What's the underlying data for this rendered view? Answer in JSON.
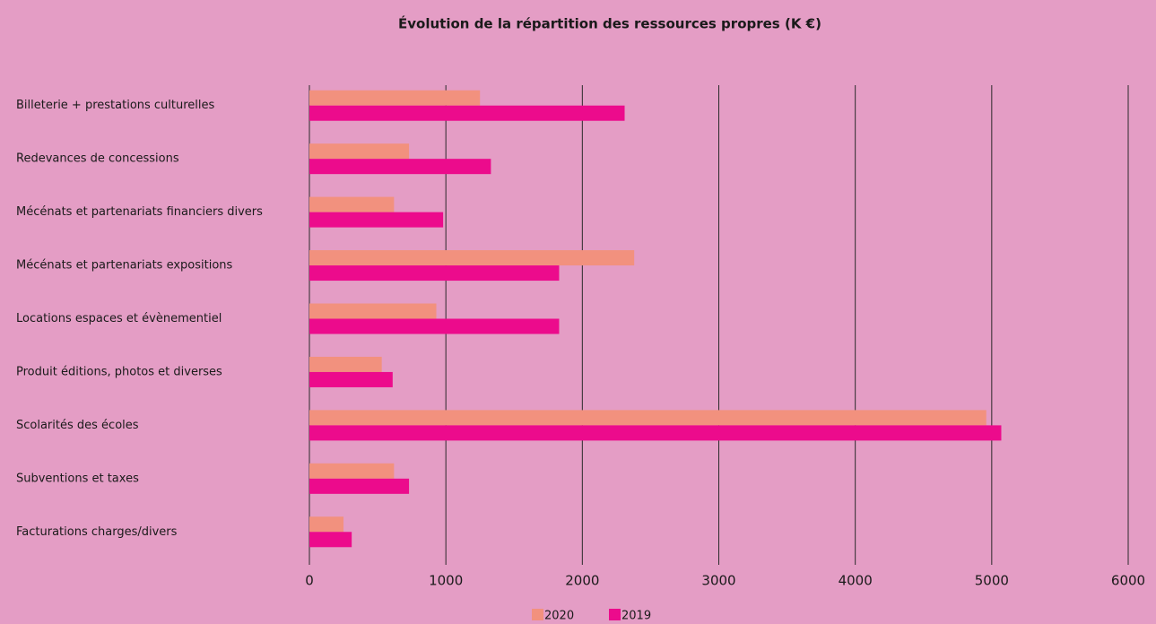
{
  "chart_data": {
    "type": "hbar",
    "title": "Évolution de la répartition des ressources propres (K €)",
    "categories": [
      "Billeterie + prestations culturelles",
      "Redevances de concessions",
      "Mécénats et partenariats financiers divers",
      "Mécénats et partenariats expositions",
      "Locations espaces et évènementiel",
      "Produit éditions, photos et diverses",
      "Scolarités des écoles",
      "Subventions et taxes",
      "Facturations charges/divers"
    ],
    "series": [
      {
        "name": "2020",
        "color": "#f2917e",
        "values": [
          1250,
          730,
          620,
          2380,
          930,
          530,
          4960,
          620,
          250
        ]
      },
      {
        "name": "2019",
        "color": "#ec0b8c",
        "values": [
          2310,
          1330,
          980,
          1830,
          1830,
          610,
          5070,
          730,
          310
        ]
      }
    ],
    "xlim": [
      0,
      6000
    ],
    "xticks": [
      0,
      1000,
      2000,
      3000,
      4000,
      5000,
      6000
    ],
    "grid": true,
    "legend": "bottom"
  }
}
